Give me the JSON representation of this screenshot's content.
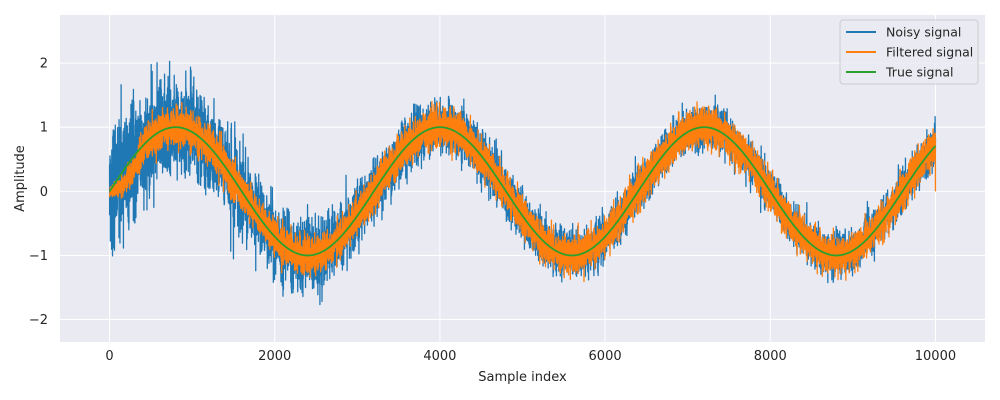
{
  "chart_data": {
    "type": "line",
    "title": "",
    "xlabel": "Sample index",
    "ylabel": "Amplitude",
    "xlim": [
      -600,
      10600
    ],
    "ylim": [
      -2.35,
      2.75
    ],
    "xticks": [
      0,
      2000,
      4000,
      6000,
      8000,
      10000
    ],
    "yticks": [
      -2,
      -1,
      0,
      1,
      2
    ],
    "x_tick_labels": [
      "0",
      "2000",
      "4000",
      "6000",
      "8000",
      "10000"
    ],
    "y_tick_labels": [
      "−2",
      "−1",
      "0",
      "1",
      "2"
    ],
    "grid": true,
    "legend_position": "top-right",
    "x_range": [
      0,
      10000
    ],
    "n_samples": 10000,
    "series": [
      {
        "name": "Noisy signal",
        "color": "#1f77b4",
        "description": "sin(2*pi*x/3200) plus noise; noise std about 0.45 near start, decaying to about 0.15",
        "base": "sine",
        "period": 3200,
        "amplitude": 1,
        "noise_std_start": 0.45,
        "noise_std_end": 0.15
      },
      {
        "name": "Filtered signal",
        "color": "#ff7f0e",
        "description": "filter output starting at 0, converging to sine with residual noise std about 0.14",
        "base": "sine",
        "period": 3200,
        "amplitude": 1,
        "noise_std": 0.14
      },
      {
        "name": "True signal",
        "color": "#2ca02c",
        "description": "clean sine wave",
        "base": "sine",
        "period": 3200,
        "amplitude": 1,
        "noise_std": 0
      }
    ]
  }
}
